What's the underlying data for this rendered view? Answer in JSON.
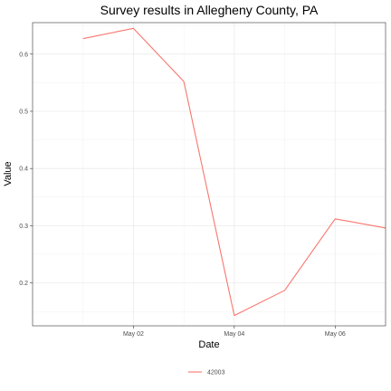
{
  "chart_data": {
    "type": "line",
    "title": "Survey results in Allegheny County, PA",
    "xlabel": "Date",
    "ylabel": "Value",
    "x": [
      "2020-05-01",
      "2020-05-02",
      "2020-05-03",
      "2020-05-04",
      "2020-05-05",
      "2020-05-06",
      "2020-05-07"
    ],
    "x_ticks": [
      {
        "value": "2020-05-02",
        "label": "May 02"
      },
      {
        "value": "2020-05-04",
        "label": "May 04"
      },
      {
        "value": "2020-05-06",
        "label": "May 06"
      }
    ],
    "y_ticks": [
      0.2,
      0.3,
      0.4,
      0.5,
      0.6
    ],
    "xlim": [
      "2020-04-30",
      "2020-05-07"
    ],
    "ylim": [
      0.125,
      0.655
    ],
    "grid": true,
    "legend_position": "bottom",
    "series": [
      {
        "name": "42003",
        "color": "#F8766D",
        "values": [
          0.627,
          0.645,
          0.552,
          0.143,
          0.187,
          0.312,
          0.296
        ]
      }
    ]
  }
}
